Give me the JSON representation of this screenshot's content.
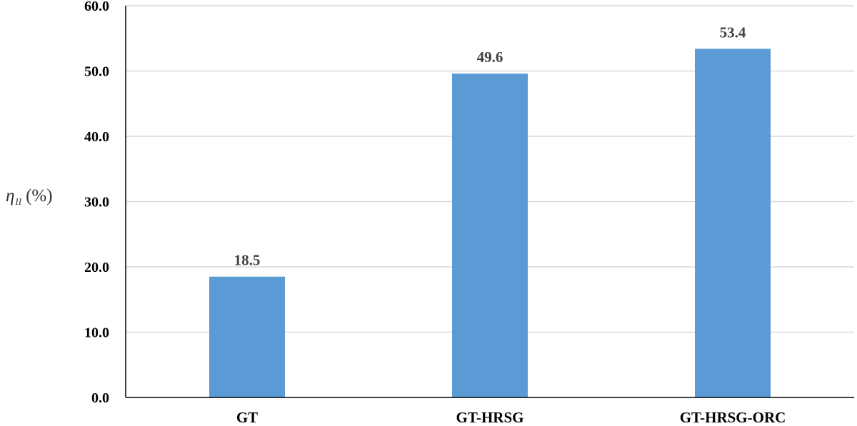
{
  "chart_data": {
    "type": "bar",
    "categories": [
      "GT",
      "GT-HRSG",
      "GT-HRSG-ORC"
    ],
    "values": [
      18.5,
      49.6,
      53.4
    ],
    "data_labels": [
      "18.5",
      "49.6",
      "53.4"
    ],
    "ylabel": {
      "symbol": "η",
      "subscript": "II",
      "unit": "(%)"
    },
    "ylim": [
      0,
      60
    ],
    "yticks": [
      "0.0",
      "10.0",
      "20.0",
      "30.0",
      "40.0",
      "50.0",
      "60.0"
    ],
    "grid": true,
    "bar_color": "#5b9bd5",
    "grid_color": "#d9d9d9"
  }
}
